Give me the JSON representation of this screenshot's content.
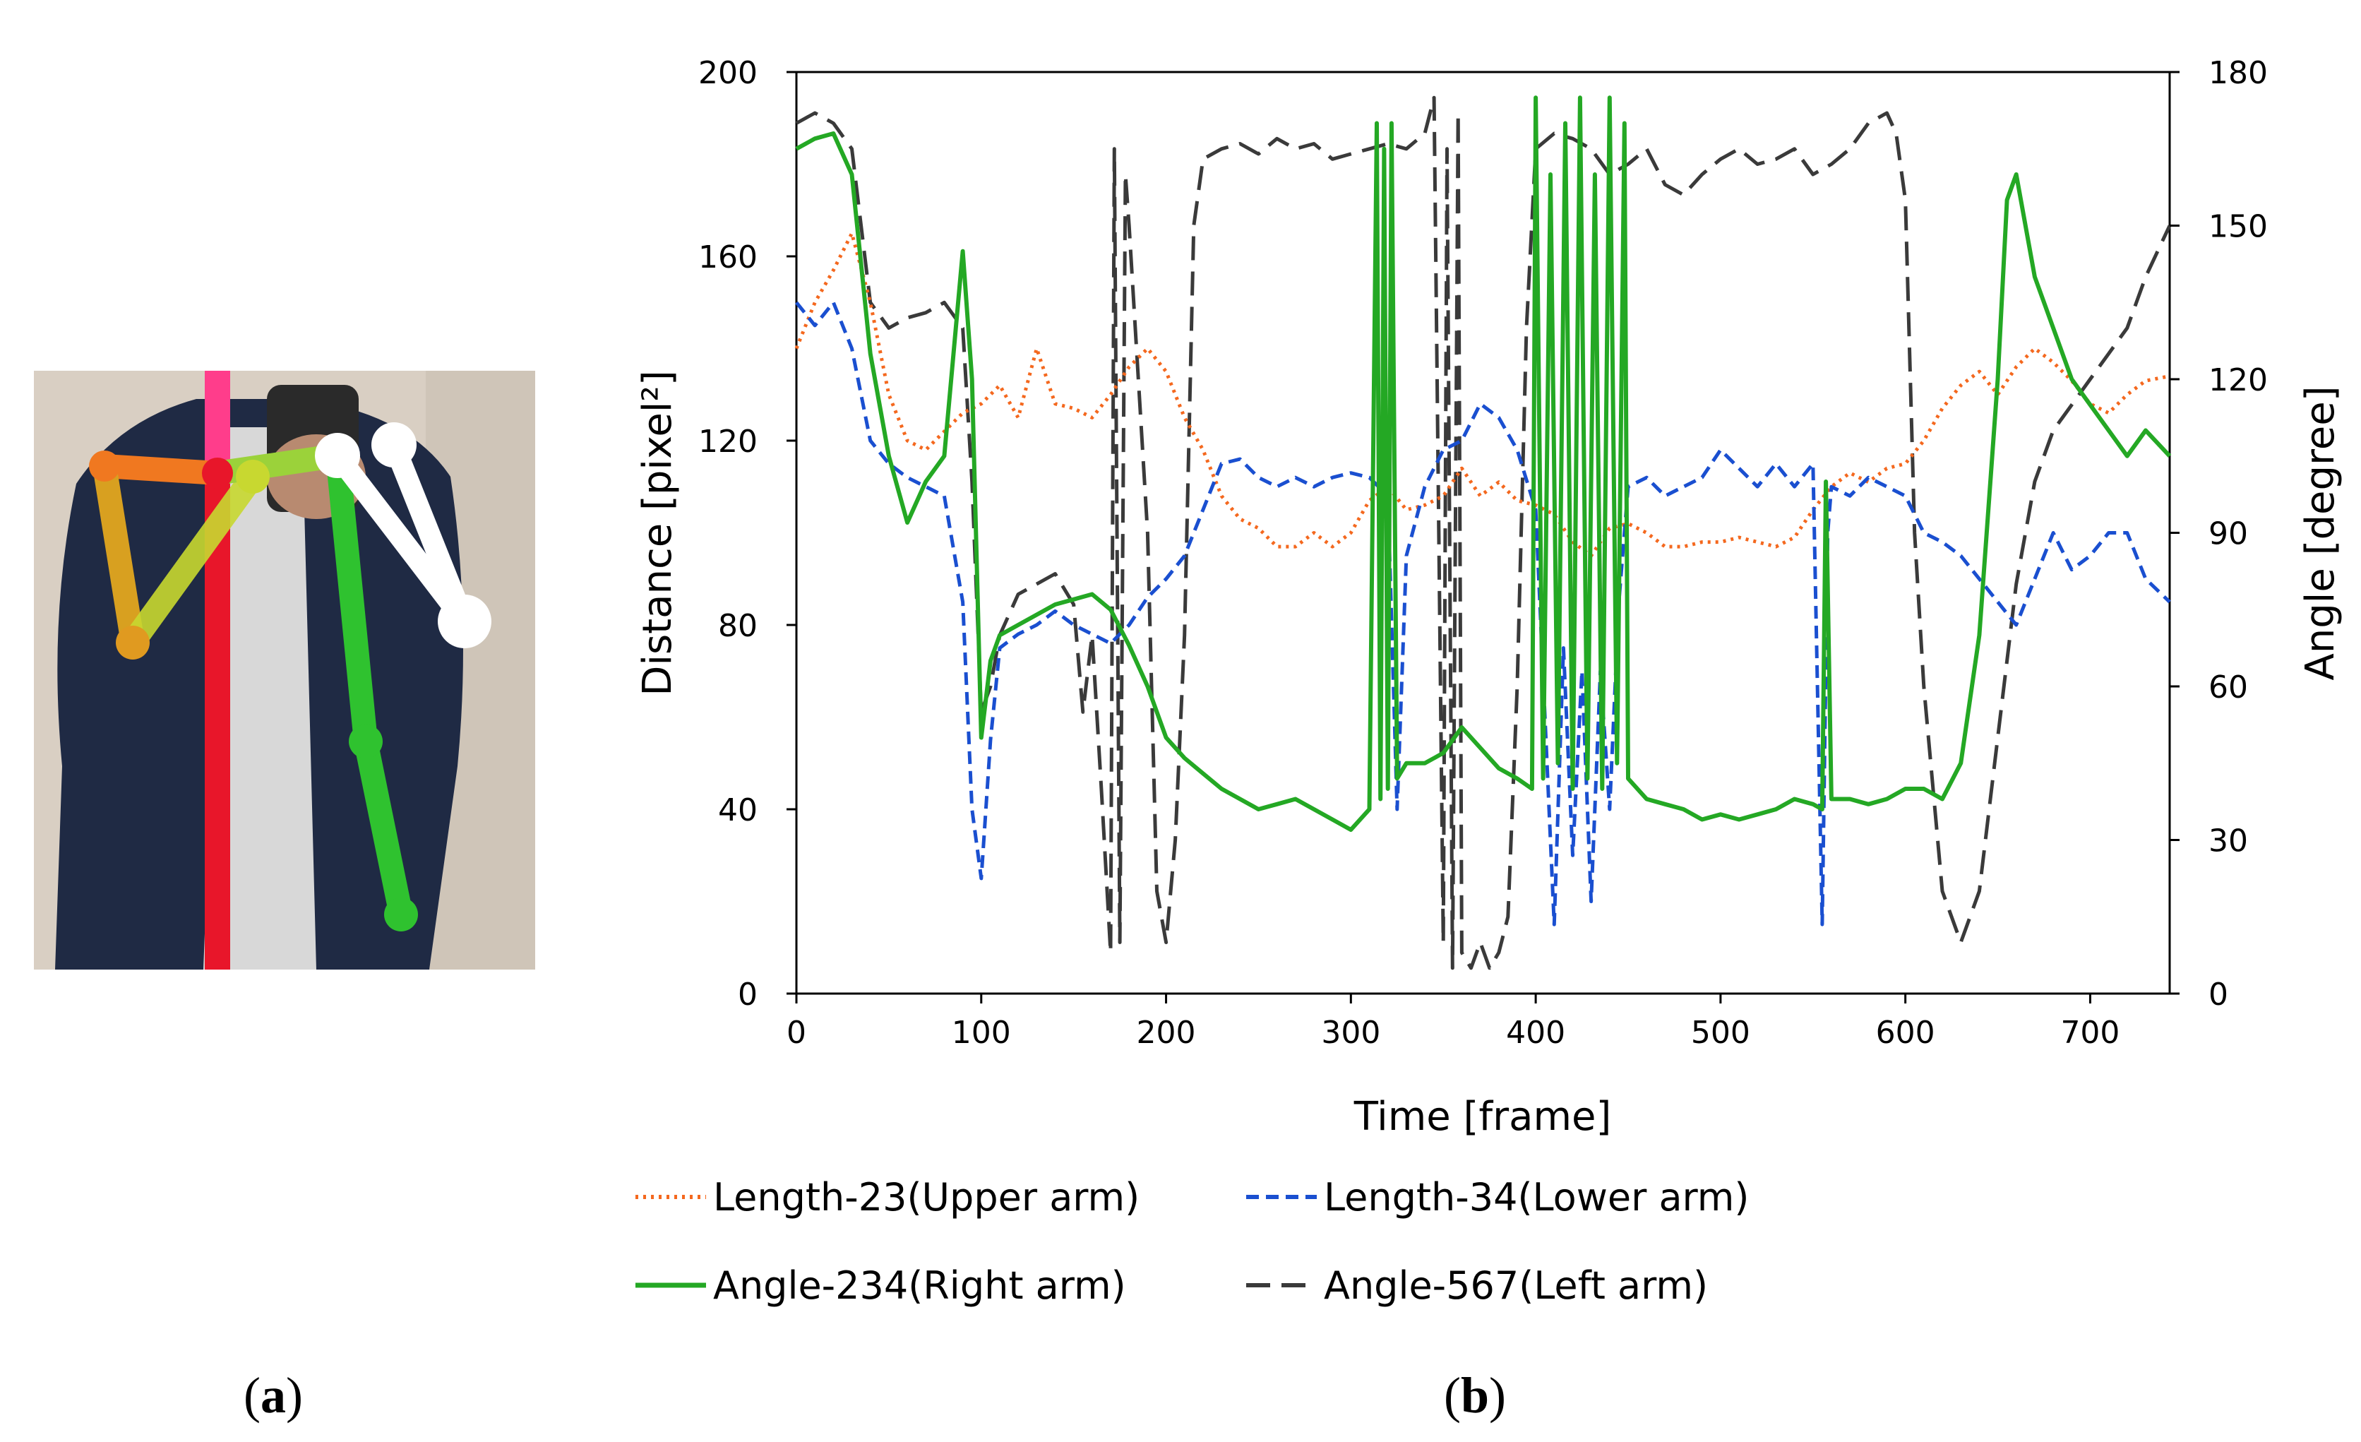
{
  "panels": {
    "a_label": "a",
    "b_label": "b"
  },
  "photo": {
    "description_icon": "person-skeleton-photo",
    "colors": {
      "background_wall": "#d9cfc3",
      "jacket": "#1f2a44",
      "shirt": "#d8d8d8",
      "spine": "#e8162a",
      "neck": "#ff3d8b",
      "right_upper_arm": "#f07820",
      "right_lower_arm": "#d8a020",
      "shoulder_link": "#c8d830",
      "left_arm": "#2fc22f",
      "left_forearm_white": "#ffffff"
    }
  },
  "chart_data": {
    "type": "line",
    "xlabel": "Time [frame]",
    "ylabel_left": "Distance [pixel²]",
    "ylabel_right": "Angle [degree]",
    "xlim": [
      0,
      743
    ],
    "ylim_left": [
      0,
      200
    ],
    "ylim_right": [
      0,
      180
    ],
    "x_ticks": [
      "0",
      "100",
      "200",
      "300",
      "400",
      "500",
      "600",
      "700"
    ],
    "y_left_ticks": [
      "0",
      "40",
      "80",
      "120",
      "160",
      "200"
    ],
    "y_right_ticks": [
      "0",
      "30",
      "60",
      "90",
      "120",
      "150",
      "180"
    ],
    "series": [
      {
        "name": "Length-23(Upper arm)",
        "axis": "left",
        "color": "#f4681e",
        "style": "dotted",
        "x": [
          0,
          10,
          20,
          30,
          40,
          50,
          60,
          70,
          80,
          90,
          100,
          110,
          120,
          130,
          140,
          150,
          160,
          170,
          180,
          190,
          200,
          210,
          220,
          230,
          240,
          250,
          260,
          270,
          280,
          290,
          300,
          310,
          320,
          330,
          340,
          350,
          360,
          370,
          380,
          390,
          400,
          410,
          420,
          430,
          440,
          450,
          460,
          470,
          480,
          490,
          500,
          510,
          520,
          530,
          540,
          550,
          560,
          570,
          580,
          590,
          600,
          610,
          620,
          630,
          640,
          650,
          660,
          670,
          680,
          690,
          700,
          710,
          720,
          730,
          743
        ],
        "values": [
          140,
          150,
          157,
          165,
          150,
          130,
          120,
          118,
          122,
          126,
          128,
          132,
          125,
          140,
          128,
          127,
          125,
          130,
          136,
          140,
          135,
          125,
          118,
          108,
          103,
          101,
          97,
          97,
          100,
          97,
          100,
          107,
          110,
          105,
          106,
          108,
          114,
          108,
          111,
          107,
          106,
          104,
          98,
          95,
          101,
          102,
          100,
          97,
          97,
          98,
          98,
          99,
          98,
          97,
          99,
          105,
          110,
          113,
          111,
          114,
          115,
          120,
          127,
          132,
          135,
          130,
          136,
          140,
          137,
          133,
          128,
          126,
          130,
          133,
          134
        ]
      },
      {
        "name": "Length-34(Lower arm)",
        "axis": "left",
        "color": "#1a4fd0",
        "style": "dashed",
        "x": [
          0,
          10,
          20,
          30,
          40,
          50,
          60,
          70,
          80,
          90,
          95,
          100,
          105,
          110,
          120,
          130,
          140,
          150,
          160,
          170,
          180,
          190,
          200,
          210,
          220,
          230,
          240,
          250,
          260,
          270,
          280,
          290,
          300,
          310,
          320,
          325,
          330,
          340,
          350,
          360,
          370,
          380,
          390,
          400,
          405,
          410,
          415,
          420,
          425,
          430,
          435,
          440,
          445,
          450,
          460,
          470,
          480,
          490,
          500,
          510,
          520,
          530,
          540,
          550,
          555,
          558,
          560,
          570,
          580,
          590,
          600,
          610,
          620,
          630,
          640,
          650,
          660,
          670,
          680,
          690,
          700,
          710,
          720,
          730,
          743
        ],
        "values": [
          150,
          145,
          150,
          140,
          120,
          115,
          112,
          110,
          108,
          85,
          40,
          25,
          55,
          75,
          78,
          80,
          83,
          80,
          78,
          76,
          80,
          86,
          90,
          95,
          105,
          115,
          116,
          112,
          110,
          112,
          110,
          112,
          113,
          112,
          108,
          40,
          95,
          110,
          118,
          120,
          128,
          125,
          118,
          105,
          60,
          15,
          75,
          30,
          70,
          20,
          70,
          40,
          85,
          110,
          112,
          108,
          110,
          112,
          118,
          114,
          110,
          115,
          110,
          115,
          15,
          100,
          110,
          108,
          112,
          110,
          108,
          100,
          98,
          95,
          90,
          85,
          80,
          90,
          100,
          92,
          95,
          100,
          100,
          90,
          85
        ]
      },
      {
        "name": "Angle-234(Right arm)",
        "axis": "right",
        "color": "#24a824",
        "style": "solid",
        "x": [
          0,
          10,
          20,
          30,
          40,
          50,
          60,
          70,
          80,
          85,
          90,
          95,
          100,
          105,
          110,
          120,
          130,
          140,
          150,
          160,
          170,
          180,
          190,
          200,
          210,
          220,
          230,
          240,
          250,
          260,
          270,
          280,
          290,
          300,
          310,
          314,
          316,
          318,
          320,
          322,
          325,
          330,
          340,
          350,
          360,
          370,
          380,
          390,
          398,
          400,
          404,
          408,
          412,
          416,
          420,
          424,
          428,
          432,
          436,
          440,
          444,
          448,
          450,
          460,
          470,
          480,
          490,
          500,
          510,
          520,
          530,
          540,
          550,
          555,
          557,
          560,
          570,
          580,
          590,
          600,
          610,
          620,
          630,
          640,
          650,
          655,
          660,
          670,
          680,
          690,
          700,
          710,
          720,
          730,
          743
        ],
        "values": [
          165,
          167,
          168,
          160,
          125,
          105,
          92,
          100,
          105,
          125,
          145,
          120,
          50,
          65,
          70,
          72,
          74,
          76,
          77,
          78,
          75,
          68,
          60,
          50,
          46,
          43,
          40,
          38,
          36,
          37,
          38,
          36,
          34,
          32,
          36,
          170,
          38,
          165,
          40,
          170,
          42,
          45,
          45,
          47,
          52,
          48,
          44,
          42,
          40,
          175,
          42,
          160,
          45,
          170,
          40,
          175,
          42,
          160,
          40,
          175,
          45,
          170,
          42,
          38,
          37,
          36,
          34,
          35,
          34,
          35,
          36,
          38,
          37,
          36,
          100,
          38,
          38,
          37,
          38,
          40,
          40,
          38,
          45,
          70,
          120,
          155,
          160,
          140,
          130,
          120,
          115,
          110,
          105,
          110,
          105
        ]
      },
      {
        "name": "Angle-567(Left arm)",
        "axis": "right",
        "color": "#3a3a3a",
        "style": "longdash",
        "x": [
          0,
          10,
          20,
          30,
          40,
          50,
          60,
          70,
          80,
          90,
          95,
          100,
          105,
          110,
          120,
          130,
          140,
          150,
          155,
          160,
          165,
          170,
          172,
          175,
          178,
          180,
          185,
          190,
          195,
          200,
          205,
          210,
          215,
          220,
          230,
          240,
          250,
          260,
          270,
          280,
          290,
          300,
          310,
          320,
          330,
          340,
          345,
          350,
          352,
          355,
          358,
          360,
          365,
          370,
          375,
          380,
          385,
          390,
          395,
          400,
          410,
          420,
          430,
          440,
          450,
          460,
          470,
          480,
          490,
          500,
          510,
          520,
          530,
          540,
          550,
          560,
          570,
          580,
          590,
          595,
          600,
          605,
          610,
          620,
          630,
          640,
          650,
          660,
          670,
          680,
          690,
          700,
          710,
          720,
          730,
          743
        ],
        "values": [
          170,
          172,
          170,
          165,
          135,
          130,
          132,
          133,
          135,
          130,
          100,
          55,
          60,
          70,
          78,
          80,
          82,
          76,
          55,
          70,
          40,
          8,
          165,
          10,
          160,
          150,
          120,
          90,
          20,
          10,
          30,
          70,
          150,
          163,
          165,
          166,
          164,
          167,
          165,
          166,
          163,
          164,
          165,
          166,
          165,
          168,
          175,
          10,
          165,
          5,
          172,
          8,
          5,
          10,
          5,
          8,
          15,
          60,
          130,
          165,
          168,
          167,
          165,
          160,
          162,
          165,
          158,
          156,
          160,
          163,
          165,
          162,
          163,
          165,
          160,
          162,
          165,
          170,
          172,
          168,
          155,
          90,
          60,
          20,
          10,
          20,
          50,
          80,
          100,
          110,
          115,
          120,
          125,
          130,
          140,
          150
        ]
      }
    ],
    "legend": [
      "Length-23(Upper arm)",
      "Length-34(Lower arm)",
      "Angle-234(Right arm)",
      "Angle-567(Left arm)"
    ],
    "legend_position": "bottom",
    "grid": false
  }
}
